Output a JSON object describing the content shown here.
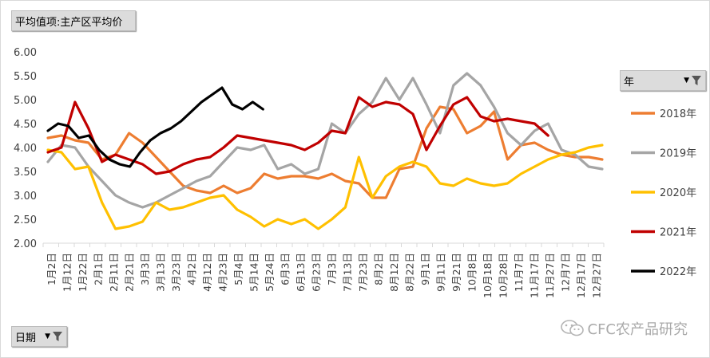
{
  "value_field_label": "平均值项:主产区平均价",
  "legend_field_label": "年",
  "axis_field_label": "日期",
  "watermark": "CFC农产品研究",
  "icons": {
    "filter": "funnel-filter-icon",
    "dropdown": "dropdown-arrow-icon",
    "wechat": "wechat-icon"
  },
  "chart_data": {
    "type": "line",
    "y_ticks": [
      "6.00",
      "5.50",
      "5.00",
      "4.50",
      "4.00",
      "3.50",
      "3.00",
      "2.50",
      "2.00"
    ],
    "ylim": [
      2.0,
      6.0
    ],
    "x_tick_labels": [
      "1月2日",
      "1月12日",
      "1月22日",
      "2月1日",
      "2月11日",
      "2月21日",
      "3月3日",
      "3月13日",
      "3月23日",
      "4月2日",
      "4月12日",
      "4月23日",
      "5月4日",
      "5月14日",
      "5月24日",
      "6月3日",
      "6月13日",
      "6月23日",
      "7月3日",
      "7月13日",
      "7月23日",
      "8月2日",
      "8月12日",
      "8月22日",
      "9月1日",
      "9月11日",
      "9月21日",
      "10月8日",
      "10月18日",
      "10月28日",
      "11月7日",
      "11月17日",
      "11月27日",
      "12月7日",
      "12月17日",
      "12月27日"
    ],
    "legend": [
      "2018年",
      "2019年",
      "2020年",
      "2021年",
      "2022年"
    ],
    "series": [
      {
        "name": "2018年",
        "color": "#ed7d31",
        "values": [
          4.2,
          4.25,
          4.15,
          4.1,
          3.75,
          3.85,
          4.3,
          4.1,
          3.8,
          3.5,
          3.2,
          3.1,
          3.05,
          3.2,
          3.05,
          3.15,
          3.45,
          3.35,
          3.4,
          3.4,
          3.35,
          3.45,
          3.3,
          3.25,
          2.95,
          2.95,
          3.55,
          3.6,
          4.4,
          4.85,
          4.8,
          4.3,
          4.45,
          4.75,
          3.75,
          4.05,
          4.1,
          3.95,
          3.85,
          3.8,
          3.8,
          3.75
        ]
      },
      {
        "name": "2019年",
        "color": "#a5a5a5",
        "values": [
          3.7,
          4.05,
          4.0,
          3.6,
          3.3,
          3.0,
          2.85,
          2.75,
          2.85,
          3.0,
          3.15,
          3.3,
          3.4,
          3.7,
          4.0,
          3.95,
          4.05,
          3.55,
          3.65,
          3.45,
          3.55,
          4.5,
          4.3,
          4.7,
          4.95,
          5.45,
          5.0,
          5.45,
          4.9,
          4.3,
          5.3,
          5.55,
          5.3,
          4.85,
          4.3,
          4.05,
          4.35,
          4.5,
          3.95,
          3.85,
          3.6,
          3.55
        ]
      },
      {
        "name": "2020年",
        "color": "#ffc000",
        "values": [
          3.95,
          3.9,
          3.55,
          3.6,
          2.85,
          2.3,
          2.35,
          2.45,
          2.85,
          2.7,
          2.75,
          2.85,
          2.95,
          3.0,
          2.7,
          2.55,
          2.35,
          2.5,
          2.4,
          2.5,
          2.3,
          2.5,
          2.75,
          3.8,
          2.95,
          3.4,
          3.6,
          3.7,
          3.6,
          3.25,
          3.2,
          3.35,
          3.25,
          3.2,
          3.25,
          3.45,
          3.6,
          3.75,
          3.85,
          3.9,
          4.0,
          4.05
        ]
      },
      {
        "name": "2021年",
        "color": "#c00000",
        "values": [
          3.9,
          4.0,
          4.95,
          4.4,
          3.7,
          3.85,
          3.75,
          3.65,
          3.45,
          3.5,
          3.65,
          3.75,
          3.8,
          4.0,
          4.25,
          4.2,
          4.15,
          4.1,
          4.05,
          3.95,
          4.1,
          4.35,
          4.3,
          5.05,
          4.85,
          4.95,
          4.9,
          4.7,
          3.95,
          4.45,
          4.9,
          5.05,
          4.65,
          4.55,
          4.6,
          4.55,
          4.5,
          4.25
        ]
      },
      {
        "name": "2022年",
        "color": "#000000",
        "values": [
          4.35,
          4.5,
          4.45,
          4.2,
          4.25,
          3.95,
          3.75,
          3.65,
          3.6,
          3.9,
          4.15,
          4.3,
          4.4,
          4.55,
          4.75,
          4.95,
          5.1,
          5.25,
          4.9,
          4.8,
          4.95,
          4.8
        ]
      }
    ]
  }
}
